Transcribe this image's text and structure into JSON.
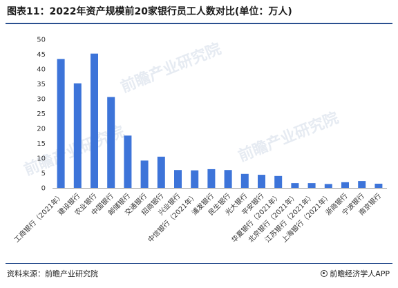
{
  "title": "图表11：2022年资产规模前20家银行员工人数对比(单位：万人)",
  "footer": {
    "source": "资料来源：前瞻产业研究院",
    "brand": "前瞻经济学人APP"
  },
  "watermark": "前瞻产业研究院",
  "colors": {
    "bar": "#3d74d9",
    "axis": "#999999",
    "rule": "#2a4f8f"
  },
  "chart_data": {
    "type": "bar",
    "title": "图表11：2022年资产规模前20家银行员工人数对比(单位：万人)",
    "xlabel": "",
    "ylabel": "",
    "ylim": [
      0,
      50
    ],
    "yticks": [
      0,
      5,
      10,
      15,
      20,
      25,
      30,
      35,
      40,
      45,
      50
    ],
    "grid": false,
    "categories": [
      "工商银行（2021年）",
      "建设银行",
      "农业银行",
      "中国银行",
      "邮储银行",
      "交通银行",
      "招商银行",
      "兴业银行",
      "中信银行（2021年）",
      "浦发银行",
      "民生银行",
      "光大银行",
      "平安银行",
      "华夏银行（2021年）",
      "北京银行（2021年）",
      "江苏银行（2021年）",
      "上海银行（2021年）",
      "浙商银行",
      "宁波银行",
      "南京银行"
    ],
    "values": [
      43.4,
      35.2,
      45.2,
      30.6,
      17.6,
      9.2,
      10.5,
      6.0,
      5.9,
      6.3,
      6.0,
      4.7,
      4.4,
      4.0,
      1.6,
      1.6,
      1.3,
      1.9,
      2.3,
      1.4
    ]
  }
}
